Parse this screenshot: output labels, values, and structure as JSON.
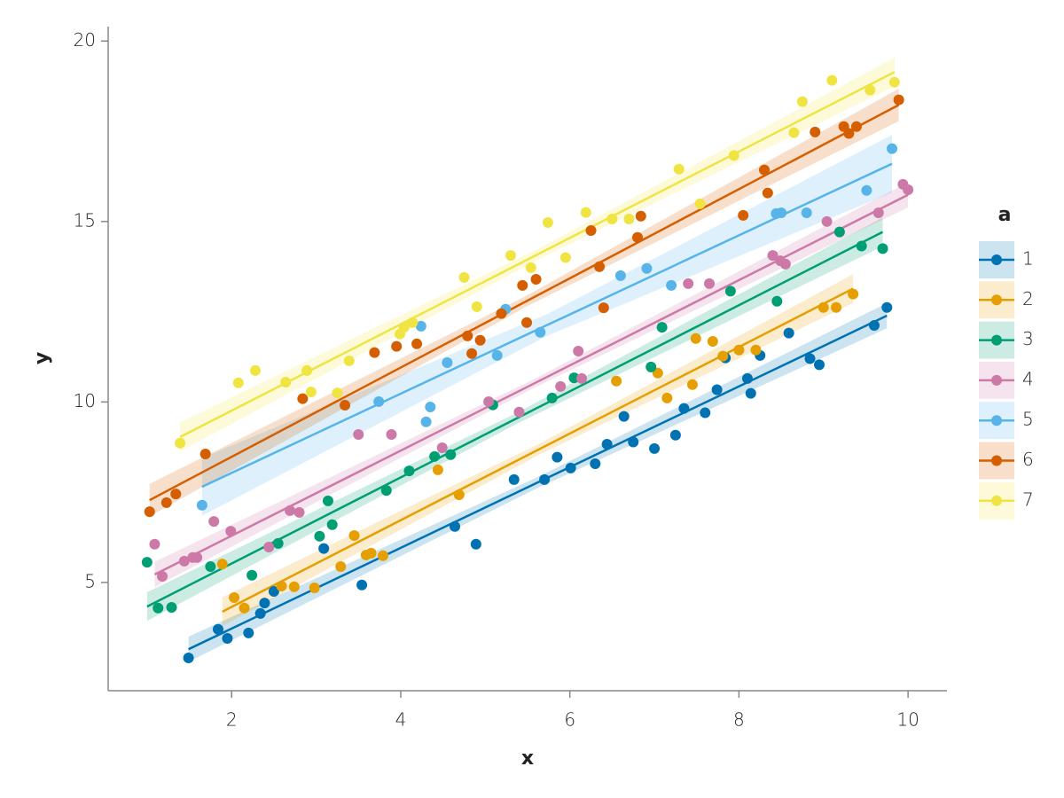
{
  "chart_data": {
    "type": "scatter",
    "x_label": "x",
    "y_label": "y",
    "legend_title": "a",
    "legend": "right",
    "xlim": [
      0.54,
      10.46
    ],
    "ylim": [
      2.0,
      20.4
    ],
    "xticks": [
      2,
      4,
      6,
      8,
      10
    ],
    "yticks": [
      5,
      10,
      15,
      20
    ],
    "series": [
      {
        "name": "1",
        "color": "#0072B2",
        "x": [
          1.49,
          1.84,
          1.95,
          2.2,
          2.34,
          2.39,
          2.5,
          3.54,
          3.09,
          4.64,
          4.89,
          5.34,
          5.7,
          5.85,
          6.01,
          6.3,
          6.44,
          6.64,
          6.75,
          7.0,
          7.25,
          7.35,
          7.6,
          7.74,
          7.84,
          8.1,
          8.14,
          8.25,
          8.59,
          8.84,
          8.95,
          9.6,
          9.75
        ],
        "y": [
          2.91,
          3.7,
          3.45,
          3.6,
          4.14,
          4.43,
          4.75,
          4.93,
          5.94,
          6.55,
          6.06,
          7.85,
          7.85,
          8.47,
          8.17,
          8.29,
          8.83,
          9.6,
          8.89,
          8.71,
          9.08,
          9.82,
          9.7,
          10.34,
          11.22,
          10.65,
          10.24,
          11.29,
          11.91,
          11.2,
          11.03,
          12.12,
          12.62
        ],
        "fit": {
          "x": [
            1.49,
            5.62,
            9.75
          ],
          "y": [
            3.15,
            7.77,
            12.39
          ],
          "lower": [
            2.8,
            7.62,
            12.04
          ],
          "upper": [
            3.5,
            7.92,
            12.74
          ]
        }
      },
      {
        "name": "2",
        "color": "#E69F00",
        "x": [
          2.03,
          2.15,
          1.89,
          2.59,
          2.74,
          2.98,
          3.29,
          3.45,
          3.59,
          3.65,
          3.79,
          4.44,
          4.69,
          6.55,
          7.04,
          7.15,
          7.45,
          7.49,
          7.69,
          7.81,
          8.0,
          8.2,
          9.0,
          9.15,
          9.35
        ],
        "y": [
          4.58,
          4.29,
          5.51,
          4.9,
          4.88,
          4.85,
          5.44,
          6.3,
          5.76,
          5.81,
          5.74,
          8.12,
          7.43,
          10.58,
          10.8,
          10.11,
          10.48,
          11.76,
          11.68,
          11.27,
          11.44,
          11.44,
          12.62,
          12.62,
          12.99
        ],
        "fit": {
          "x": [
            1.89,
            5.62,
            9.35
          ],
          "y": [
            4.19,
            8.67,
            13.14
          ],
          "lower": [
            3.79,
            8.52,
            12.74
          ],
          "upper": [
            4.59,
            8.82,
            13.54
          ]
        }
      },
      {
        "name": "3",
        "color": "#009E73",
        "x": [
          1.0,
          1.13,
          1.29,
          1.75,
          2.24,
          2.55,
          3.04,
          3.14,
          3.19,
          3.83,
          4.1,
          4.4,
          4.59,
          5.09,
          5.79,
          6.05,
          6.96,
          7.09,
          7.9,
          8.45,
          9.19,
          9.45,
          9.7
        ],
        "y": [
          5.56,
          4.29,
          4.31,
          5.44,
          5.2,
          6.08,
          6.28,
          7.26,
          6.6,
          7.55,
          8.09,
          8.49,
          8.54,
          9.92,
          10.11,
          10.67,
          10.97,
          12.07,
          13.07,
          12.79,
          14.71,
          14.32,
          14.25
        ],
        "fit": {
          "x": [
            1.0,
            5.35,
            9.7
          ],
          "y": [
            4.33,
            9.52,
            14.71
          ],
          "lower": [
            3.93,
            9.37,
            14.31
          ],
          "upper": [
            4.73,
            9.67,
            15.11
          ]
        }
      },
      {
        "name": "4",
        "color": "#CC79A7",
        "x": [
          1.09,
          1.18,
          1.44,
          1.54,
          1.59,
          1.79,
          1.99,
          2.44,
          2.69,
          2.8,
          3.5,
          3.89,
          4.49,
          5.04,
          5.4,
          5.89,
          6.1,
          6.14,
          7.4,
          7.65,
          8.4,
          8.49,
          8.55,
          9.04,
          9.65,
          9.94,
          10.0
        ],
        "y": [
          6.06,
          5.17,
          5.59,
          5.69,
          5.69,
          6.69,
          6.42,
          5.98,
          6.99,
          6.94,
          9.1,
          9.1,
          8.73,
          10.01,
          9.72,
          10.43,
          11.41,
          10.65,
          13.28,
          13.28,
          14.06,
          13.91,
          13.82,
          15.0,
          15.24,
          16.03,
          15.88
        ],
        "fit": {
          "x": [
            1.09,
            5.55,
            10.0
          ],
          "y": [
            5.22,
            10.48,
            15.74
          ],
          "lower": [
            4.87,
            10.36,
            15.39
          ],
          "upper": [
            5.57,
            10.6,
            16.09
          ]
        }
      },
      {
        "name": "5",
        "color": "#56B4E9",
        "x": [
          1.65,
          3.74,
          4.24,
          4.3,
          4.35,
          4.55,
          5.14,
          5.24,
          5.65,
          6.6,
          6.91,
          7.2,
          8.44,
          8.5,
          8.8,
          9.51,
          9.81
        ],
        "y": [
          7.14,
          10.01,
          12.1,
          9.45,
          9.86,
          11.09,
          11.29,
          12.57,
          11.93,
          13.5,
          13.7,
          13.23,
          15.22,
          15.24,
          15.24,
          15.86,
          17.02
        ],
        "fit": {
          "x": [
            1.65,
            5.73,
            9.81
          ],
          "y": [
            7.65,
            12.13,
            16.6
          ],
          "lower": [
            6.85,
            11.83,
            15.8
          ],
          "upper": [
            8.45,
            12.43,
            17.4
          ]
        }
      },
      {
        "name": "6",
        "color": "#D55E00",
        "x": [
          1.03,
          1.23,
          1.34,
          1.69,
          2.84,
          3.34,
          3.69,
          3.95,
          4.19,
          4.79,
          4.84,
          4.94,
          5.19,
          5.44,
          5.49,
          5.6,
          6.25,
          6.35,
          6.4,
          6.8,
          6.84,
          8.05,
          8.3,
          8.34,
          8.9,
          9.24,
          9.3,
          9.39,
          9.89
        ],
        "y": [
          6.96,
          7.21,
          7.45,
          8.56,
          10.09,
          9.91,
          11.37,
          11.54,
          11.61,
          11.83,
          11.34,
          11.71,
          12.45,
          13.23,
          12.2,
          13.4,
          14.75,
          13.75,
          12.61,
          14.56,
          15.15,
          15.17,
          16.43,
          15.79,
          17.48,
          17.63,
          17.44,
          17.63,
          18.37
        ],
        "fit": {
          "x": [
            1.03,
            5.46,
            9.89
          ],
          "y": [
            7.28,
            12.76,
            18.23
          ],
          "lower": [
            6.83,
            12.61,
            17.78
          ],
          "upper": [
            7.73,
            12.91,
            18.68
          ]
        }
      },
      {
        "name": "7",
        "color": "#F0E442",
        "x": [
          1.39,
          2.08,
          2.28,
          2.64,
          2.89,
          2.94,
          3.25,
          3.39,
          3.99,
          4.04,
          4.14,
          4.75,
          4.9,
          5.3,
          5.54,
          5.74,
          5.95,
          6.19,
          6.5,
          6.7,
          7.29,
          7.54,
          7.94,
          8.65,
          8.75,
          9.1,
          9.55,
          9.84
        ],
        "y": [
          8.86,
          10.53,
          10.87,
          10.55,
          10.87,
          10.28,
          10.25,
          11.14,
          11.88,
          12.07,
          12.2,
          13.45,
          12.64,
          14.06,
          13.72,
          14.97,
          14.0,
          15.25,
          15.07,
          15.07,
          16.45,
          15.49,
          16.83,
          17.46,
          18.32,
          18.91,
          18.64,
          18.86
        ],
        "fit": {
          "x": [
            1.39,
            5.62,
            9.84
          ],
          "y": [
            9.03,
            14.09,
            19.14
          ],
          "lower": [
            8.63,
            13.94,
            18.74
          ],
          "upper": [
            9.43,
            14.24,
            19.54
          ]
        }
      }
    ]
  }
}
